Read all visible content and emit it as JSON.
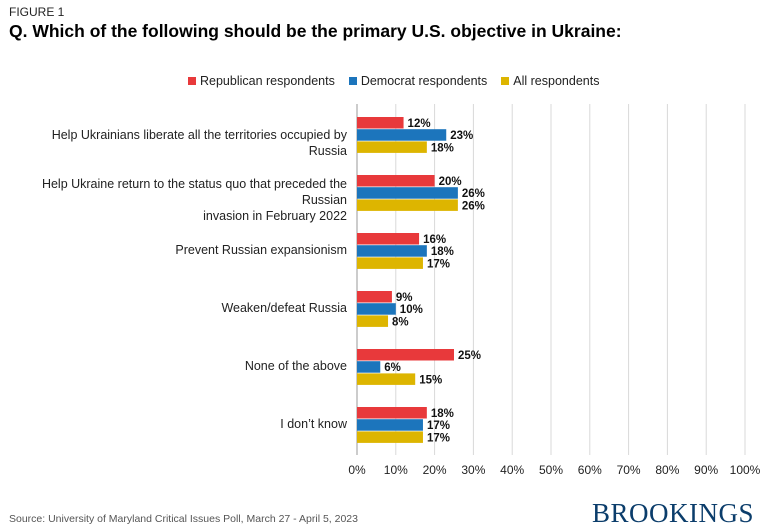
{
  "figure_label": "FIGURE 1",
  "title": "Q. Which of the following should be the primary U.S. objective in Ukraine:",
  "source": "Source: University of Maryland Critical Issues Poll, March 27 - April 5, 2023",
  "brand": "BROOKINGS",
  "colors": {
    "republican": "#e8393b",
    "democrat": "#1c75bc",
    "all": "#ddb500"
  },
  "chart_data": {
    "type": "bar",
    "orientation": "horizontal",
    "categories": [
      "Help Ukrainians liberate all the territories occupied by Russia",
      "Help Ukraine return to the status quo that preceded the Russian invasion in February 2022",
      "Prevent Russian expansionism",
      "Weaken/defeat Russia",
      "None of the above",
      "I don’t know"
    ],
    "category_lines": [
      [
        "Help Ukrainians liberate all the territories occupied by Russia"
      ],
      [
        "Help Ukraine return to the status quo that preceded the Russian",
        "invasion in February 2022"
      ],
      [
        "Prevent Russian expansionism"
      ],
      [
        "Weaken/defeat Russia"
      ],
      [
        "None of the above"
      ],
      [
        "I don’t know"
      ]
    ],
    "series": [
      {
        "name": "Republican respondents",
        "values": [
          12,
          20,
          16,
          9,
          25,
          18
        ],
        "labels": [
          "12%",
          "20%",
          "16%",
          "9%",
          "25%",
          "18%"
        ]
      },
      {
        "name": "Democrat respondents",
        "values": [
          23,
          26,
          18,
          10,
          6,
          17
        ],
        "labels": [
          "23%",
          "26%",
          "18%",
          "10%",
          "6%",
          "17%"
        ]
      },
      {
        "name": "All respondents",
        "values": [
          18,
          26,
          17,
          8,
          15,
          17
        ],
        "labels": [
          "18%",
          "26%",
          "17%",
          "8%",
          "15%",
          "17%"
        ]
      }
    ],
    "xlim": [
      0,
      100
    ],
    "xticks": [
      0,
      10,
      20,
      30,
      40,
      50,
      60,
      70,
      80,
      90,
      100
    ],
    "xtick_labels": [
      "0%",
      "10%",
      "20%",
      "30%",
      "40%",
      "50%",
      "60%",
      "70%",
      "80%",
      "90%",
      "100%"
    ],
    "grid": true,
    "legend_position": "top"
  }
}
